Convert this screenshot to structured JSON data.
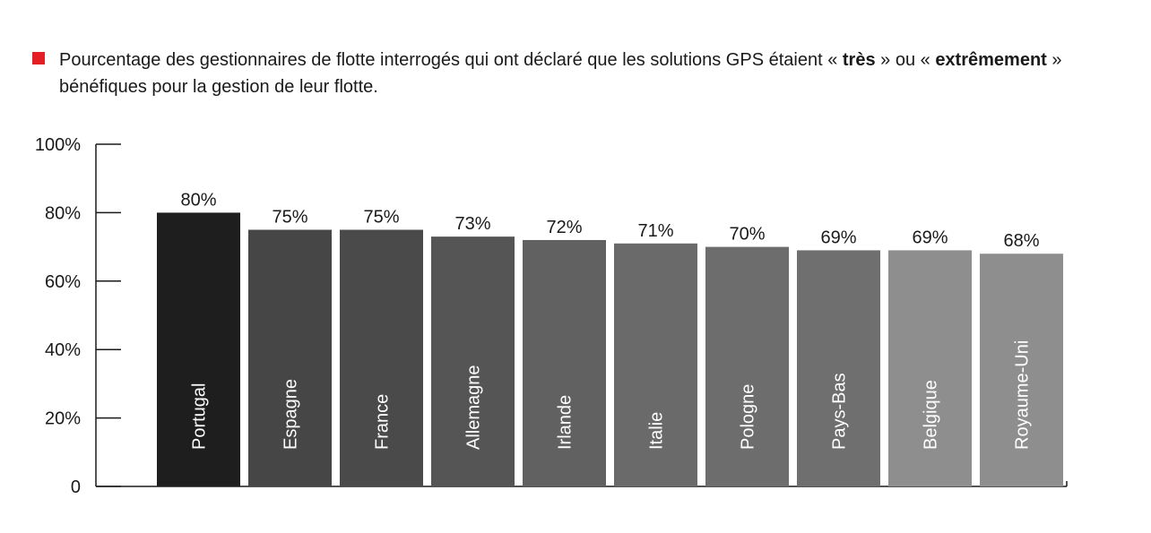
{
  "legend": {
    "color": "#e31e24",
    "text_part1": "Pourcentage des gestionnaires de flotte interrogés qui ont déclaré que les solutions GPS étaient « ",
    "bold1": "très",
    "text_part2": " » ou « ",
    "bold2": "extrêmement",
    "text_part3": " » bénéfiques pour la gestion de leur flotte."
  },
  "chart_data": {
    "type": "bar",
    "title": "",
    "xlabel": "",
    "ylabel": "",
    "ylim": [
      0,
      100
    ],
    "yticks": [
      0,
      20,
      40,
      60,
      80,
      100
    ],
    "ytick_labels": [
      "0",
      "20%",
      "40%",
      "60%",
      "80%",
      "100%"
    ],
    "categories": [
      "Portugal",
      "Espagne",
      "France",
      "Allemagne",
      "Irlande",
      "Italie",
      "Pologne",
      "Pays-Bas",
      "Belgique",
      "Royaume-Uni"
    ],
    "values": [
      80,
      75,
      75,
      73,
      72,
      71,
      70,
      69,
      69,
      68
    ],
    "value_labels": [
      "80%",
      "75%",
      "75%",
      "73%",
      "72%",
      "71%",
      "70%",
      "69%",
      "69%",
      "68%"
    ],
    "colors": [
      "#1e1e1e",
      "#464646",
      "#4a4a4a",
      "#555555",
      "#616161",
      "#6a6a6a",
      "#6d6d6d",
      "#6f6f6f",
      "#8e8e8e",
      "#8e8e8e"
    ],
    "grid": false,
    "legend_position": "top-left"
  }
}
